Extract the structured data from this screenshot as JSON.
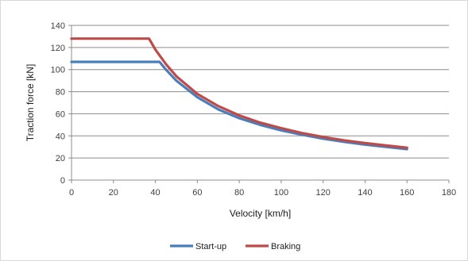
{
  "chart_data": {
    "type": "line",
    "title": "",
    "xlabel": "Velocity [km/h]",
    "ylabel": "Traction force [kN]",
    "xlim": [
      0,
      180
    ],
    "ylim": [
      0,
      140
    ],
    "x_ticks": [
      0,
      20,
      40,
      60,
      80,
      100,
      120,
      140,
      160,
      180
    ],
    "y_ticks": [
      0,
      20,
      40,
      60,
      80,
      100,
      120,
      140
    ],
    "grid": "horizontal",
    "legend_position": "bottom",
    "series": [
      {
        "name": "Start-up",
        "color": "#4a7ebb",
        "x": [
          0,
          10,
          20,
          30,
          42,
          45,
          50,
          60,
          70,
          80,
          90,
          100,
          110,
          120,
          130,
          140,
          150,
          160
        ],
        "y": [
          107,
          107,
          107,
          107,
          107,
          100,
          90,
          75,
          64,
          56,
          50,
          45,
          41,
          37.5,
          34.6,
          32.1,
          30,
          28
        ]
      },
      {
        "name": "Braking",
        "color": "#be4b48",
        "x": [
          0,
          10,
          20,
          30,
          37,
          40,
          45,
          50,
          60,
          70,
          80,
          90,
          100,
          110,
          120,
          130,
          140,
          150,
          160
        ],
        "y": [
          128,
          128,
          128,
          128,
          128,
          118,
          105,
          94,
          78,
          67,
          58.5,
          52,
          47,
          42.5,
          39,
          36,
          33.5,
          31.3,
          29.3
        ]
      }
    ]
  }
}
